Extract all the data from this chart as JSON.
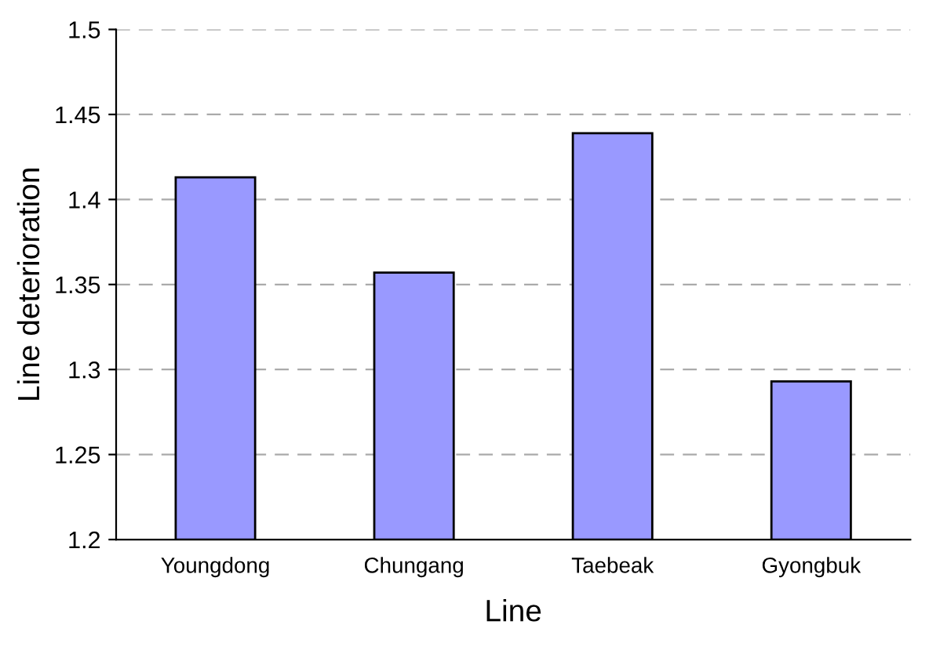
{
  "chart_data": {
    "type": "bar",
    "xlabel": "Line",
    "ylabel": "Line deterioration",
    "categories": [
      "Youngdong",
      "Chungang",
      "Taebeak",
      "Gyongbuk"
    ],
    "values": [
      1.413,
      1.357,
      1.439,
      1.293
    ],
    "color": "#9999ff",
    "ylim": [
      1.2,
      1.5
    ],
    "yticks": [
      1.2,
      1.25,
      1.3,
      1.35,
      1.4,
      1.45,
      1.5
    ],
    "grid": "y",
    "legend": false
  }
}
